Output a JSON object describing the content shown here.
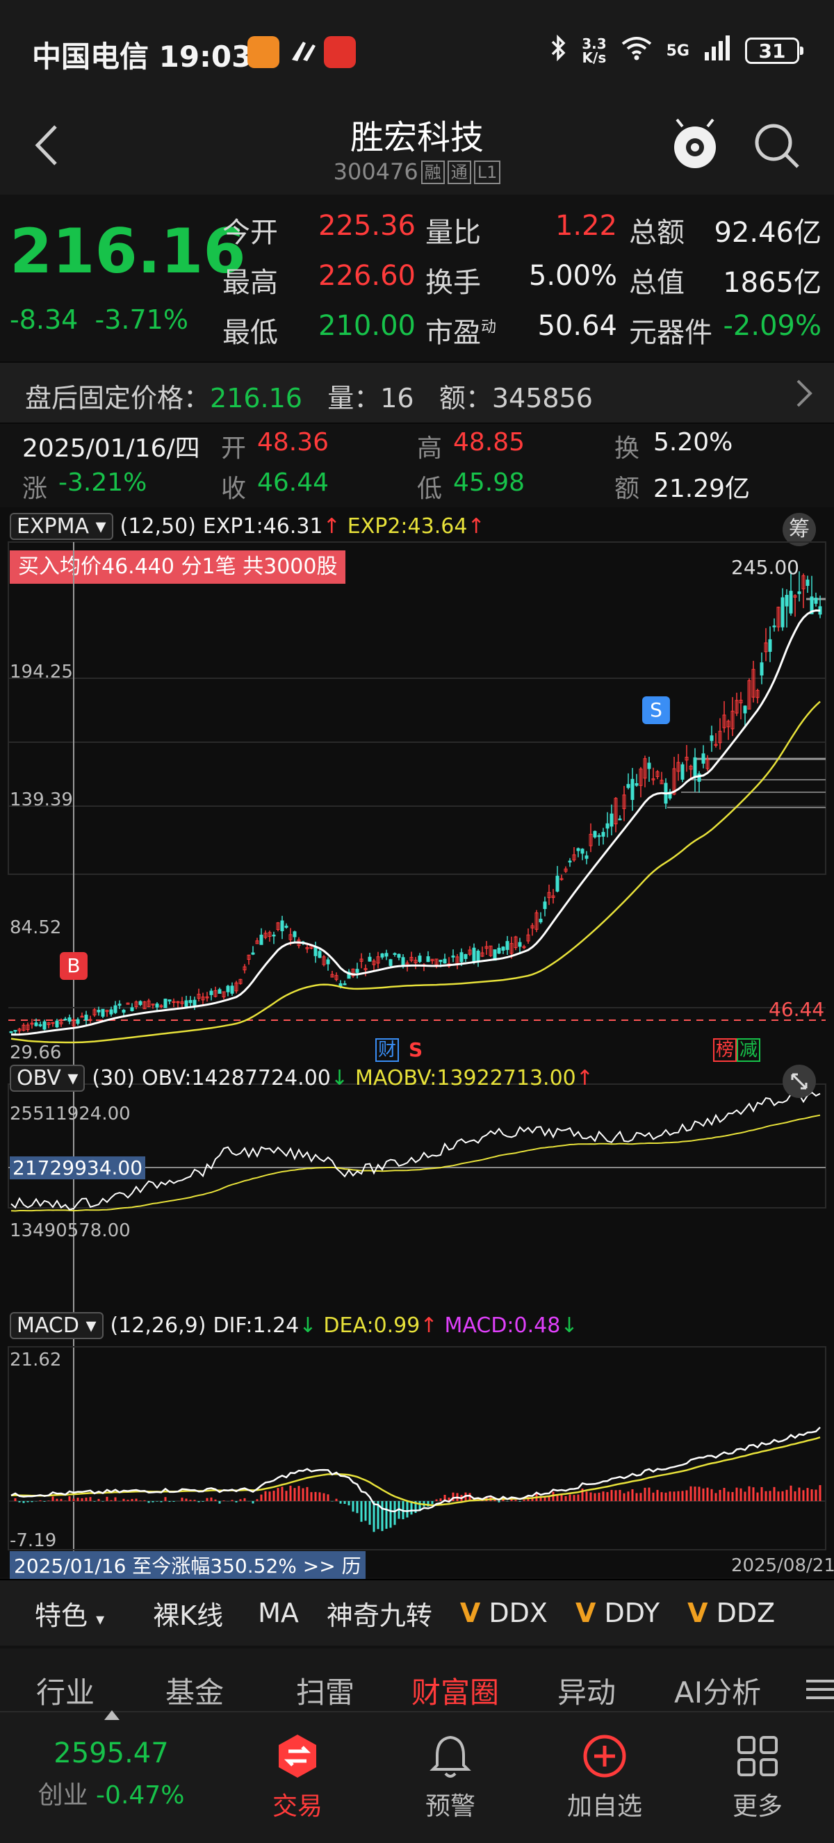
{
  "status_bar": {
    "carrier": "中国电信",
    "time": "19:03",
    "net_speed_top": "3.3",
    "net_speed_unit": "K/s",
    "network": "5G",
    "battery": "31"
  },
  "header": {
    "title": "胜宏科技",
    "code": "300476",
    "tags": [
      "融",
      "通",
      "L1"
    ]
  },
  "quote": {
    "price": "216.16",
    "change": "-8.34",
    "change_pct": "-3.71%",
    "fields": [
      {
        "label": "今开",
        "value": "225.36"
      },
      {
        "label": "量比",
        "value": "1.22"
      },
      {
        "label": "总额",
        "value": "92.46亿"
      },
      {
        "label": "最高",
        "value": "226.60"
      },
      {
        "label": "换手",
        "value": "5.00%"
      },
      {
        "label": "总值",
        "value": "1865亿"
      },
      {
        "label": "最低",
        "value": "210.00"
      },
      {
        "label": "市盈",
        "label_sup": "动",
        "value": "50.64"
      },
      {
        "label": "元器件",
        "value": "-2.09%"
      }
    ]
  },
  "after_hours": {
    "label": "盘后固定价格：",
    "price": "216.16",
    "vol_label": "量：",
    "vol": "16",
    "amt_label": "额：",
    "amt": "345856"
  },
  "day_info": {
    "date": "2025/01/16/四",
    "open_label": "开",
    "open": "48.36",
    "high_label": "高",
    "high": "48.85",
    "turnover_label": "换",
    "turnover": "5.20%",
    "chg_label": "涨",
    "chg": "-3.21%",
    "close_label": "收",
    "close": "46.44",
    "low_label": "低",
    "low": "45.98",
    "amount_label": "额",
    "amount": "21.29亿"
  },
  "main_chart": {
    "indicator": "EXPMA",
    "params": "(12,50)",
    "exp1_label": "EXP1:",
    "exp1": "46.31",
    "exp2_label": "EXP2:",
    "exp2": "43.64",
    "chip_btn": "筹",
    "trade_banner": "买入均价46.440 分1笔 共3000股",
    "y_labels": [
      "194.25",
      "139.39",
      "84.52",
      "29.66"
    ],
    "max_label": "245.00",
    "cost_label": "46.44",
    "buy_marker": "B",
    "sell_marker": "S",
    "event_fin": "财",
    "event_s": "S",
    "event_bang": "榜",
    "event_jian": "减",
    "colors": {
      "up": "#ff3b3b",
      "down": "#3fe0d0",
      "exp1": "#ffffff",
      "exp2": "#e8e23a"
    }
  },
  "obv_chart": {
    "indicator": "OBV",
    "params": "(30)",
    "obv_label": "OBV:",
    "obv": "14287724.00",
    "maobv_label": "MAOBV:",
    "maobv": "13922713.00",
    "y_top": "25511924.00",
    "y_cross": "21729934.00",
    "y_bottom": "13490578.00"
  },
  "macd_chart": {
    "indicator": "MACD",
    "params": "(12,26,9)",
    "dif_label": "DIF:",
    "dif": "1.24",
    "dea_label": "DEA:",
    "dea": "0.99",
    "macd_label": "MACD:",
    "macd": "0.48",
    "y_top": "21.62",
    "y_bottom": "-7.19",
    "range_text": "2025/01/16 至今涨幅350.52%",
    "range_link": ">> 历",
    "end_date": "2025/08/21"
  },
  "toolbar": {
    "feature": "特色",
    "items": [
      "裸K线",
      "MA",
      "神奇九转",
      "DDX",
      "DDY",
      "DDZ"
    ]
  },
  "tabs": [
    "行业",
    "基金",
    "扫雷",
    "财富圈",
    "异动",
    "AI分析"
  ],
  "bottom_nav": {
    "index_value": "2595.47",
    "index_name": "创业",
    "index_chg": "-0.47%",
    "items": [
      "交易",
      "预警",
      "加自选",
      "更多"
    ]
  }
}
